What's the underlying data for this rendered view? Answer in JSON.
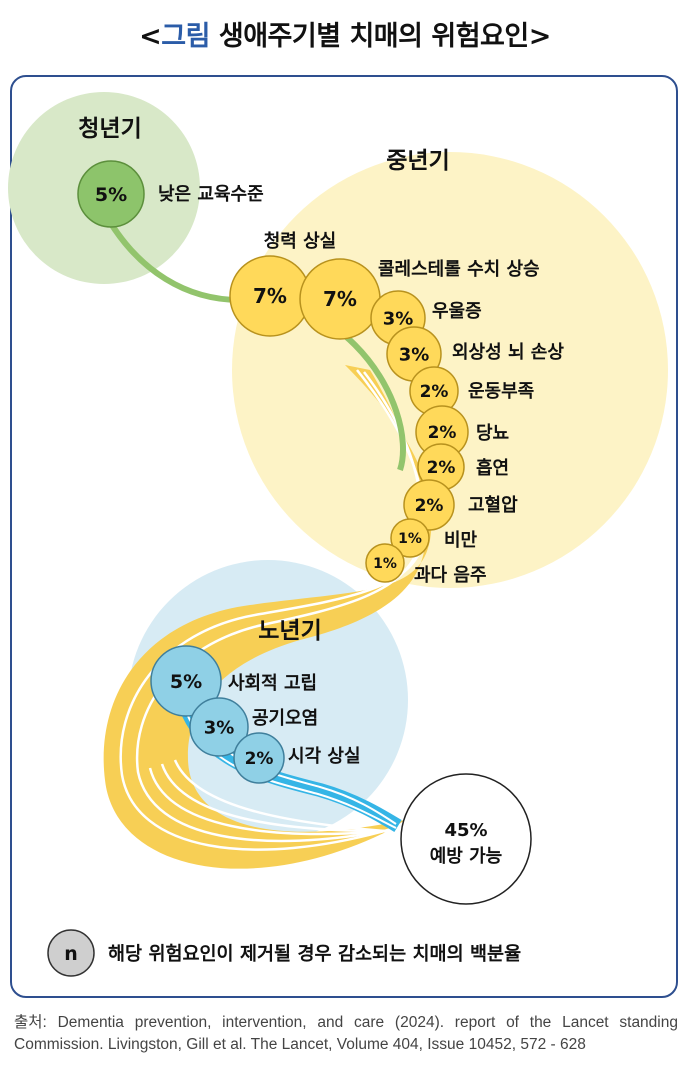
{
  "title": {
    "bracket_open": "<",
    "highlight": "그림",
    "text": " 생애주기별 치매의 위험요인",
    "bracket_close": ">"
  },
  "stages": {
    "youth": "청년기",
    "middle": "중년기",
    "old": "노년기"
  },
  "factors": [
    {
      "id": "education",
      "stage": "youth",
      "pct": "5%",
      "label": "낮은 교육수준"
    },
    {
      "id": "hearing",
      "stage": "middle",
      "pct": "7%",
      "label": "청력 상실"
    },
    {
      "id": "cholesterol",
      "stage": "middle",
      "pct": "7%",
      "label": "콜레스테롤 수치 상승"
    },
    {
      "id": "depression",
      "stage": "middle",
      "pct": "3%",
      "label": "우울증"
    },
    {
      "id": "brain-injury",
      "stage": "middle",
      "pct": "3%",
      "label": "외상성 뇌 손상"
    },
    {
      "id": "inactivity",
      "stage": "middle",
      "pct": "2%",
      "label": "운동부족"
    },
    {
      "id": "diabetes",
      "stage": "middle",
      "pct": "2%",
      "label": "당뇨"
    },
    {
      "id": "smoking",
      "stage": "middle",
      "pct": "2%",
      "label": "흡연"
    },
    {
      "id": "hypertension",
      "stage": "middle",
      "pct": "2%",
      "label": "고혈압"
    },
    {
      "id": "obesity",
      "stage": "middle",
      "pct": "1%",
      "label": "비만"
    },
    {
      "id": "alcohol",
      "stage": "middle",
      "pct": "1%",
      "label": "과다 음주"
    },
    {
      "id": "isolation",
      "stage": "old",
      "pct": "5%",
      "label": "사회적 고립"
    },
    {
      "id": "pollution",
      "stage": "old",
      "pct": "3%",
      "label": "공기오염"
    },
    {
      "id": "vision",
      "stage": "old",
      "pct": "2%",
      "label": "시각 상실"
    }
  ],
  "total": {
    "pct": "45%",
    "label": "예방 가능"
  },
  "legend": {
    "symbol": "n",
    "text": "해당 위험요인이 제거될 경우 감소되는 치매의 백분율"
  },
  "source": "출처: Dementia prevention, intervention, and care (2024). report of the Lancet standing Commission. Livingston, Gill et al. The Lancet, Volume 404, Issue 10452, 572 - 628",
  "colors": {
    "youth_bg": "#d8e8c8",
    "youth_circle": "#8dc46b",
    "youth_stroke": "#5c8f3c",
    "middle_bg": "#fdf3c6",
    "middle_circle": "#ffd95a",
    "middle_stroke": "#b8921e",
    "old_bg": "#d7ebf4",
    "old_circle": "#8fd0e6",
    "old_stroke": "#3f7f9c",
    "flow_yellow": "#f7cf55",
    "flow_green": "#92c46c",
    "flow_blue": "#35b5e6",
    "frame": "#2e4f8f"
  }
}
